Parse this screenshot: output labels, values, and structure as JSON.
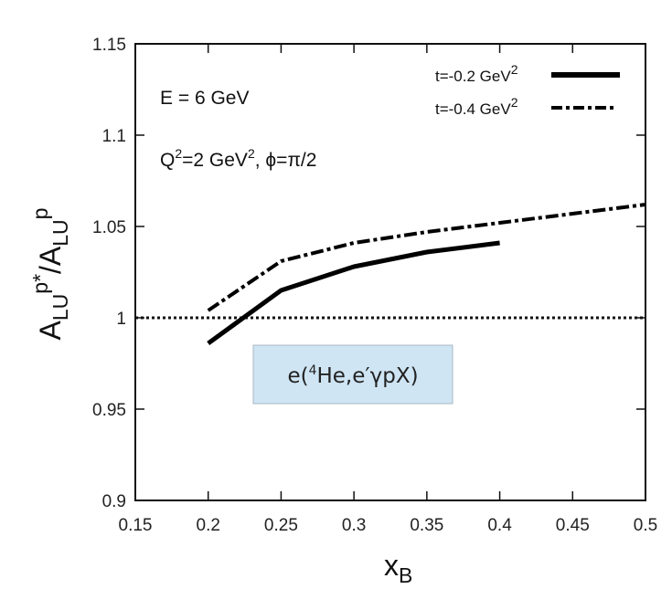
{
  "chart_data": {
    "type": "line",
    "xlabel_main": "x",
    "xlabel_sub": "B",
    "ylabel_parts": [
      "A",
      "LU",
      "p*",
      "/A",
      "LU",
      "p"
    ],
    "xlim": [
      0.15,
      0.5
    ],
    "ylim": [
      0.9,
      1.15
    ],
    "x_ticks": [
      "0.15",
      "0.2",
      "0.25",
      "0.3",
      "0.35",
      "0.4",
      "0.45",
      "0.5"
    ],
    "y_ticks": [
      "0.9",
      "0.95",
      "1",
      "1.05",
      "1.1",
      "1.15"
    ],
    "annotations": {
      "energy": "E = 6 GeV",
      "q2_prefix": "Q",
      "q2_sup": "2",
      "q2_mid": "=2 GeV",
      "q2_unit_sup": "2",
      "phi": ", ϕ=π/2",
      "reaction_pre": "e(",
      "reaction_sup": "4",
      "reaction_post": "He,e′γpX)"
    },
    "series": [
      {
        "name": "t=-0.2 GeV",
        "name_sup": "2",
        "style": "solid",
        "x": [
          0.2,
          0.25,
          0.3,
          0.35,
          0.4
        ],
        "y": [
          0.986,
          1.015,
          1.028,
          1.036,
          1.041
        ]
      },
      {
        "name": "t=-0.4 GeV",
        "name_sup": "2",
        "style": "dash-dot",
        "x": [
          0.2,
          0.25,
          0.3,
          0.35,
          0.4,
          0.45,
          0.5
        ],
        "y": [
          1.004,
          1.031,
          1.041,
          1.047,
          1.052,
          1.057,
          1.062
        ]
      }
    ],
    "reference_line": {
      "y": 1.0,
      "style": "dotted"
    },
    "legend_position": "top-right",
    "grid": false
  }
}
